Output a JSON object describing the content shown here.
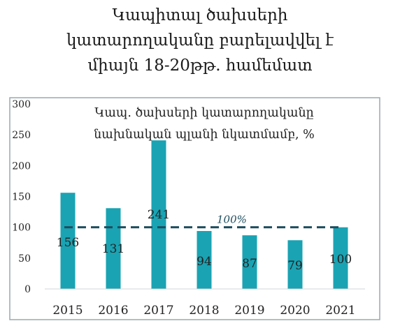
{
  "title_lines": [
    "Կապիտալ ծախսերի",
    "կատարողականը բարելավվել է",
    "միայն 18-20թթ. համեմատ"
  ],
  "colors": {
    "bar": "#1aa3b3",
    "reference_line": "#1f4e5f",
    "frame": "#9aa8ad"
  },
  "chart_data": {
    "type": "bar",
    "subtitle_lines": [
      "Կապ. ծախսերի կատարողականը",
      "նախնական պլանի նկատմամբ, %"
    ],
    "categories": [
      "2015",
      "2016",
      "2017",
      "2018",
      "2019",
      "2020",
      "2021"
    ],
    "values": [
      156,
      131,
      241,
      94,
      87,
      79,
      100
    ],
    "data_labels": [
      "156",
      "131",
      "241",
      "94",
      "87",
      "79",
      "100"
    ],
    "ylim": [
      0,
      300
    ],
    "yticks": [
      0,
      50,
      100,
      150,
      200,
      250,
      300
    ],
    "reference_line": {
      "value": 100,
      "label": "100%",
      "style": "dashed"
    },
    "grid": false,
    "xlabel": "",
    "ylabel": ""
  }
}
